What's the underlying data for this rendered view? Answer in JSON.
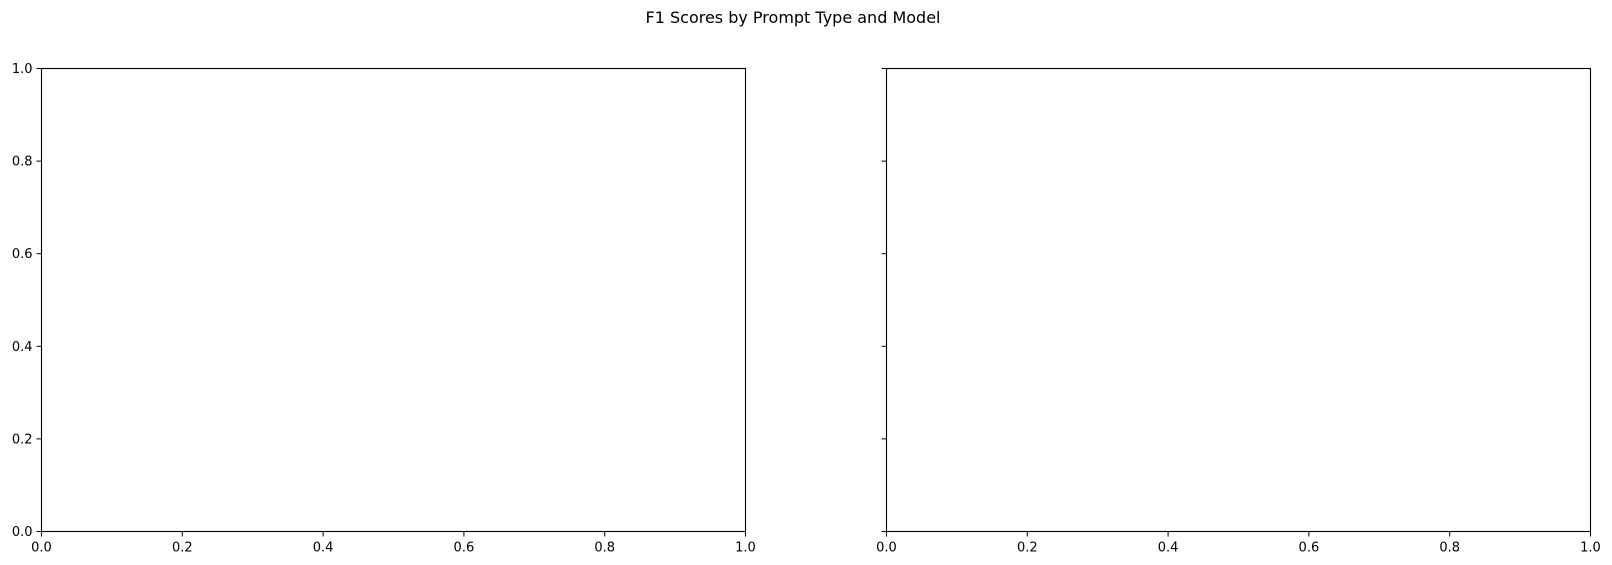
{
  "figure": {
    "title": "F1 Scores by Prompt Type and Model",
    "background_color": "#ffffff",
    "axis_color": "#000000"
  },
  "chart_data": [
    {
      "type": "bar",
      "title": "",
      "xlabel": "",
      "ylabel": "",
      "series": [],
      "xlim": [
        0.0,
        1.0
      ],
      "ylim": [
        0.0,
        1.0
      ],
      "xticks": [
        "0.0",
        "0.2",
        "0.4",
        "0.6",
        "0.8",
        "1.0"
      ],
      "yticks": [
        "0.0",
        "0.2",
        "0.4",
        "0.6",
        "0.8",
        "1.0"
      ],
      "show_ytick_labels": true,
      "grid": false
    },
    {
      "type": "bar",
      "title": "",
      "xlabel": "",
      "ylabel": "",
      "series": [],
      "xlim": [
        0.0,
        1.0
      ],
      "ylim": [
        0.0,
        1.0
      ],
      "xticks": [
        "0.0",
        "0.2",
        "0.4",
        "0.6",
        "0.8",
        "1.0"
      ],
      "yticks": [
        "0.0",
        "0.2",
        "0.4",
        "0.6",
        "0.8",
        "1.0"
      ],
      "show_ytick_labels": false,
      "grid": false
    }
  ]
}
